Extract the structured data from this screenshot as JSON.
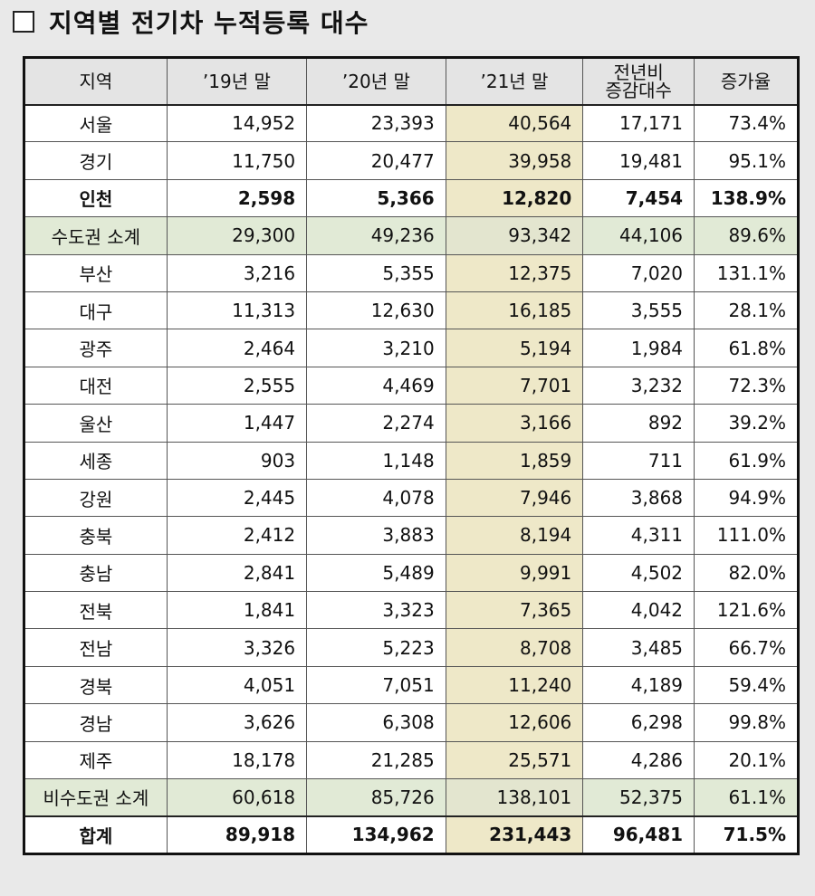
{
  "title": "지역별 전기차 누적등록 대수",
  "headers": [
    "지역",
    "’19년 말",
    "’20년 말",
    "’21년 말",
    "전년비\n증감대수",
    "증가율"
  ],
  "rows": [
    {
      "region": "서울",
      "v19": "14,952",
      "v20": "23,393",
      "v21": "40,564",
      "diff": "17,171",
      "rate": "73.4%",
      "style": ""
    },
    {
      "region": "경기",
      "v19": "11,750",
      "v20": "20,477",
      "v21": "39,958",
      "diff": "19,481",
      "rate": "95.1%",
      "style": ""
    },
    {
      "region": "인천",
      "v19": "2,598",
      "v20": "5,366",
      "v21": "12,820",
      "diff": "7,454",
      "rate": "138.9%",
      "style": "bold"
    },
    {
      "region": "수도권 소계",
      "v19": "29,300",
      "v20": "49,236",
      "v21": "93,342",
      "diff": "44,106",
      "rate": "89.6%",
      "style": "sub"
    },
    {
      "region": "부산",
      "v19": "3,216",
      "v20": "5,355",
      "v21": "12,375",
      "diff": "7,020",
      "rate": "131.1%",
      "style": ""
    },
    {
      "region": "대구",
      "v19": "11,313",
      "v20": "12,630",
      "v21": "16,185",
      "diff": "3,555",
      "rate": "28.1%",
      "style": ""
    },
    {
      "region": "광주",
      "v19": "2,464",
      "v20": "3,210",
      "v21": "5,194",
      "diff": "1,984",
      "rate": "61.8%",
      "style": ""
    },
    {
      "region": "대전",
      "v19": "2,555",
      "v20": "4,469",
      "v21": "7,701",
      "diff": "3,232",
      "rate": "72.3%",
      "style": ""
    },
    {
      "region": "울산",
      "v19": "1,447",
      "v20": "2,274",
      "v21": "3,166",
      "diff": "892",
      "rate": "39.2%",
      "style": ""
    },
    {
      "region": "세종",
      "v19": "903",
      "v20": "1,148",
      "v21": "1,859",
      "diff": "711",
      "rate": "61.9%",
      "style": ""
    },
    {
      "region": "강원",
      "v19": "2,445",
      "v20": "4,078",
      "v21": "7,946",
      "diff": "3,868",
      "rate": "94.9%",
      "style": ""
    },
    {
      "region": "충북",
      "v19": "2,412",
      "v20": "3,883",
      "v21": "8,194",
      "diff": "4,311",
      "rate": "111.0%",
      "style": ""
    },
    {
      "region": "충남",
      "v19": "2,841",
      "v20": "5,489",
      "v21": "9,991",
      "diff": "4,502",
      "rate": "82.0%",
      "style": ""
    },
    {
      "region": "전북",
      "v19": "1,841",
      "v20": "3,323",
      "v21": "7,365",
      "diff": "4,042",
      "rate": "121.6%",
      "style": ""
    },
    {
      "region": "전남",
      "v19": "3,326",
      "v20": "5,223",
      "v21": "8,708",
      "diff": "3,485",
      "rate": "66.7%",
      "style": ""
    },
    {
      "region": "경북",
      "v19": "4,051",
      "v20": "7,051",
      "v21": "11,240",
      "diff": "4,189",
      "rate": "59.4%",
      "style": ""
    },
    {
      "region": "경남",
      "v19": "3,626",
      "v20": "6,308",
      "v21": "12,606",
      "diff": "6,298",
      "rate": "99.8%",
      "style": ""
    },
    {
      "region": "제주",
      "v19": "18,178",
      "v20": "21,285",
      "v21": "25,571",
      "diff": "4,286",
      "rate": "20.1%",
      "style": ""
    },
    {
      "region": "비수도권 소계",
      "v19": "60,618",
      "v20": "85,726",
      "v21": "138,101",
      "diff": "52,375",
      "rate": "61.1%",
      "style": "sub"
    },
    {
      "region": "합계",
      "v19": "89,918",
      "v20": "134,962",
      "v21": "231,443",
      "diff": "96,481",
      "rate": "71.5%",
      "style": "total"
    }
  ]
}
